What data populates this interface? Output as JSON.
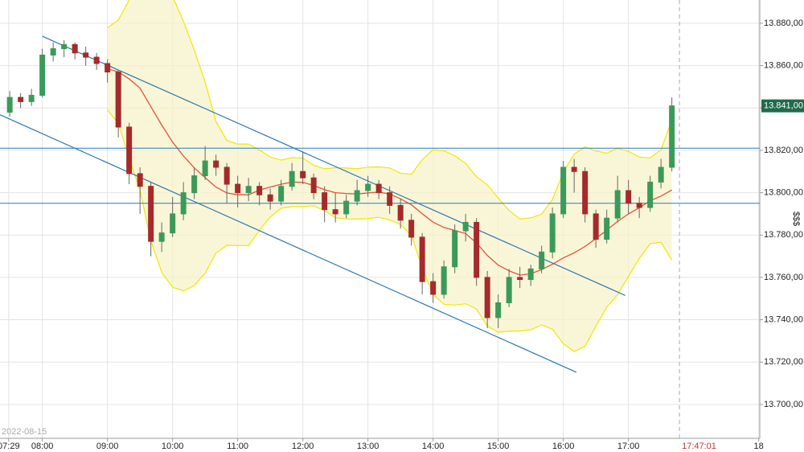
{
  "chart_data": {
    "type": "candlestick",
    "date_label": "2022-08-15",
    "y_axis_label": "$$$",
    "xlim": [
      441,
      1141
    ],
    "ylim": [
      13684,
      13891
    ],
    "xticks": [
      {
        "value": 449,
        "label": "07:29"
      },
      {
        "value": 480,
        "label": "08:00"
      },
      {
        "value": 540,
        "label": "09:00"
      },
      {
        "value": 600,
        "label": "10:00"
      },
      {
        "value": 660,
        "label": "11:00"
      },
      {
        "value": 720,
        "label": "12:00"
      },
      {
        "value": 780,
        "label": "13:00"
      },
      {
        "value": 840,
        "label": "14:00"
      },
      {
        "value": 900,
        "label": "15:00"
      },
      {
        "value": 960,
        "label": "16:00"
      },
      {
        "value": 1020,
        "label": "17:00"
      },
      {
        "value": 1140,
        "label": "18"
      }
    ],
    "yticks": [
      {
        "value": 13700,
        "label": "13.700,00"
      },
      {
        "value": 13720,
        "label": "13.720,00"
      },
      {
        "value": 13740,
        "label": "13.740,00"
      },
      {
        "value": 13760,
        "label": "13.760,00"
      },
      {
        "value": 13780,
        "label": "13.780,00"
      },
      {
        "value": 13800,
        "label": "13.800,00"
      },
      {
        "value": 13820,
        "label": "13.820,00"
      },
      {
        "value": 13840,
        "label": "13.840,00"
      },
      {
        "value": 13860,
        "label": "13.860,00"
      },
      {
        "value": 13880,
        "label": "13.880,00"
      }
    ],
    "grid": true,
    "up_color": "#3a9a5a",
    "down_color": "#a52a2a",
    "band_color": "#f2e600",
    "ma_color": "#e0533a",
    "last_price": {
      "value": 13841,
      "label": "13.841,00"
    },
    "time_cursor": {
      "value": 1067,
      "label": "17:47:01"
    },
    "hlines": [
      13821,
      13795
    ],
    "trendlines": [
      {
        "x": [
          480,
          1017
        ],
        "y": [
          13873.9,
          13751.5
        ]
      },
      {
        "x": [
          441,
          972
        ],
        "y": [
          13836.8,
          13715.2
        ]
      }
    ],
    "x": [
      450,
      460,
      470,
      480,
      490,
      500,
      510,
      520,
      530,
      540,
      550,
      560,
      570,
      580,
      590,
      600,
      610,
      620,
      630,
      640,
      650,
      660,
      670,
      680,
      690,
      700,
      710,
      720,
      730,
      740,
      750,
      760,
      770,
      780,
      790,
      800,
      810,
      820,
      830,
      840,
      850,
      860,
      870,
      880,
      890,
      900,
      910,
      920,
      930,
      940,
      950,
      960,
      970,
      980,
      990,
      1000,
      1010,
      1020,
      1030,
      1040,
      1050,
      1060
    ],
    "candles": [
      [
        13838,
        13848,
        13836,
        13845
      ],
      [
        13845,
        13847,
        13840,
        13843
      ],
      [
        13843,
        13849,
        13841,
        13846
      ],
      [
        13846,
        13868,
        13845,
        13865
      ],
      [
        13865,
        13871,
        13862,
        13868
      ],
      [
        13868,
        13872,
        13864,
        13870
      ],
      [
        13870,
        13871,
        13863,
        13866
      ],
      [
        13866,
        13869,
        13860,
        13864
      ],
      [
        13864,
        13866,
        13858,
        13861
      ],
      [
        13861,
        13863,
        13852,
        13857
      ],
      [
        13857,
        13858,
        13826,
        13831
      ],
      [
        13831,
        13833,
        13804,
        13809
      ],
      [
        13809,
        13812,
        13790,
        13803
      ],
      [
        13803,
        13805,
        13770,
        13777
      ],
      [
        13777,
        13786,
        13772,
        13781
      ],
      [
        13781,
        13798,
        13779,
        13790
      ],
      [
        13790,
        13805,
        13787,
        13800
      ],
      [
        13800,
        13812,
        13797,
        13808
      ],
      [
        13808,
        13822,
        13806,
        13815
      ],
      [
        13815,
        13818,
        13808,
        13812
      ],
      [
        13812,
        13814,
        13795,
        13804
      ],
      [
        13804,
        13808,
        13793,
        13800
      ],
      [
        13800,
        13807,
        13796,
        13803
      ],
      [
        13803,
        13805,
        13794,
        13799
      ],
      [
        13799,
        13802,
        13792,
        13796
      ],
      [
        13796,
        13806,
        13794,
        13803
      ],
      [
        13803,
        13814,
        13801,
        13810
      ],
      [
        13810,
        13819,
        13804,
        13807
      ],
      [
        13807,
        13809,
        13797,
        13800
      ],
      [
        13800,
        13803,
        13786,
        13792
      ],
      [
        13792,
        13800,
        13786,
        13790
      ],
      [
        13790,
        13799,
        13788,
        13796
      ],
      [
        13796,
        13806,
        13794,
        13801
      ],
      [
        13801,
        13808,
        13798,
        13804
      ],
      [
        13804,
        13806,
        13797,
        13800
      ],
      [
        13800,
        13803,
        13790,
        13794
      ],
      [
        13794,
        13797,
        13783,
        13787
      ],
      [
        13787,
        13790,
        13775,
        13779
      ],
      [
        13779,
        13781,
        13752,
        13758
      ],
      [
        13758,
        13762,
        13748,
        13752
      ],
      [
        13752,
        13768,
        13750,
        13765
      ],
      [
        13765,
        13785,
        13762,
        13782
      ],
      [
        13782,
        13790,
        13777,
        13786
      ],
      [
        13786,
        13788,
        13756,
        13760
      ],
      [
        13760,
        13763,
        13736,
        13741
      ],
      [
        13741,
        13752,
        13736,
        13748
      ],
      [
        13748,
        13764,
        13746,
        13760
      ],
      [
        13760,
        13765,
        13755,
        13759
      ],
      [
        13759,
        13766,
        13756,
        13764
      ],
      [
        13764,
        13775,
        13762,
        13772
      ],
      [
        13772,
        13793,
        13769,
        13790
      ],
      [
        13790,
        13815,
        13788,
        13812
      ],
      [
        13812,
        13816,
        13800,
        13810
      ],
      [
        13810,
        13812,
        13786,
        13790
      ],
      [
        13790,
        13792,
        13774,
        13778
      ],
      [
        13778,
        13792,
        13776,
        13788
      ],
      [
        13788,
        13808,
        13786,
        13801
      ],
      [
        13801,
        13806,
        13790,
        13795
      ],
      [
        13795,
        13798,
        13788,
        13793
      ],
      [
        13793,
        13808,
        13791,
        13805
      ],
      [
        13805,
        13816,
        13802,
        13812
      ],
      [
        13812,
        13845,
        13810,
        13841
      ]
    ]
  }
}
